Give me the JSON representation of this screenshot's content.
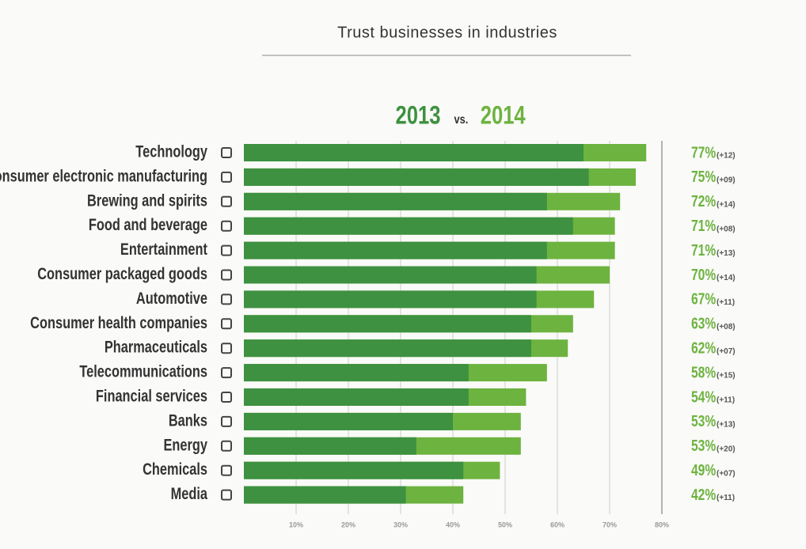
{
  "chart_data": {
    "type": "bar",
    "title": "Trust businesses in industries",
    "legend_joiner": "vs.",
    "categories": [
      "Technology",
      "Consumer electronic manufacturing",
      "Brewing and spirits",
      "Food and beverage",
      "Entertainment",
      "Consumer packaged goods",
      "Automotive",
      "Consumer health companies",
      "Pharmaceuticals",
      "Telecommunications",
      "Financial services",
      "Banks",
      "Energy",
      "Chemicals",
      "Media"
    ],
    "series": [
      {
        "name": "2013",
        "color": "#3d9140",
        "values": [
          65,
          66,
          58,
          63,
          58,
          56,
          56,
          55,
          55,
          43,
          43,
          40,
          33,
          42,
          31
        ]
      },
      {
        "name": "2014",
        "color": "#6db33f",
        "values": [
          77,
          75,
          72,
          71,
          71,
          70,
          67,
          63,
          62,
          58,
          54,
          53,
          53,
          49,
          42
        ],
        "value_labels": [
          "77%",
          "75%",
          "72%",
          "71%",
          "71%",
          "70%",
          "67%",
          "63%",
          "62%",
          "58%",
          "54%",
          "53%",
          "53%",
          "49%",
          "42%"
        ]
      }
    ],
    "changes": [
      12,
      9,
      14,
      8,
      13,
      14,
      11,
      8,
      7,
      15,
      11,
      13,
      20,
      7,
      11
    ],
    "change_labels": [
      "(+12)",
      "(+09)",
      "(+14)",
      "(+08)",
      "(+13)",
      "(+14)",
      "(+11)",
      "(+08)",
      "(+07)",
      "(+15)",
      "(+11)",
      "(+13)",
      "(+20)",
      "(+07)",
      "(+11)"
    ],
    "xlim": [
      0,
      80
    ],
    "xticks": [
      {
        "value": 10,
        "label": "10%"
      },
      {
        "value": 20,
        "label": "20%"
      },
      {
        "value": 30,
        "label": "30%"
      },
      {
        "value": 40,
        "label": "40%"
      },
      {
        "value": 50,
        "label": "50%"
      },
      {
        "value": 60,
        "label": "60%"
      },
      {
        "value": 70,
        "label": "70%"
      },
      {
        "value": 80,
        "label": "80%"
      }
    ],
    "grid": true
  }
}
